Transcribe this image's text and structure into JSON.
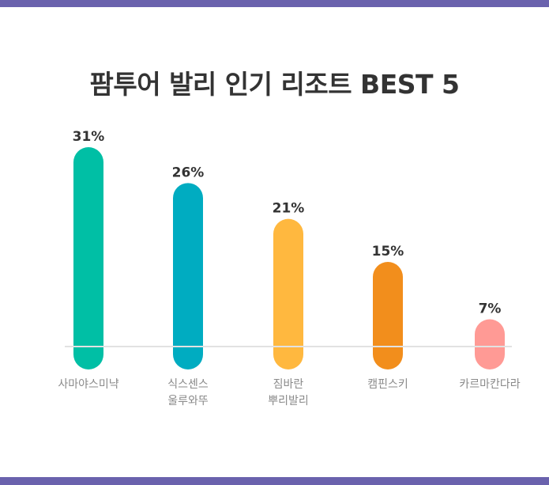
{
  "chart_data": {
    "type": "bar",
    "title": "팜투어 발리 인기 리조트 BEST 5",
    "categories": [
      [
        "사마야스미냑"
      ],
      [
        "식스센스",
        "울루와뚜"
      ],
      [
        "짐바란",
        "뿌리발리"
      ],
      [
        "캠핀스키"
      ],
      [
        "카르마칸다라"
      ]
    ],
    "values": [
      31,
      26,
      21,
      15,
      7
    ],
    "value_labels": [
      "31%",
      "26%",
      "21%",
      "15%",
      "7%"
    ],
    "colors": [
      "#00bfa5",
      "#00acc1",
      "#ffb83f",
      "#f28e1c",
      "#ff9a95"
    ],
    "unit": "%",
    "ylim": [
      0,
      31
    ],
    "grid": false,
    "legend": "none"
  },
  "colors": {
    "frame": "#6a62ad",
    "baseline": "#e2e2e2"
  }
}
